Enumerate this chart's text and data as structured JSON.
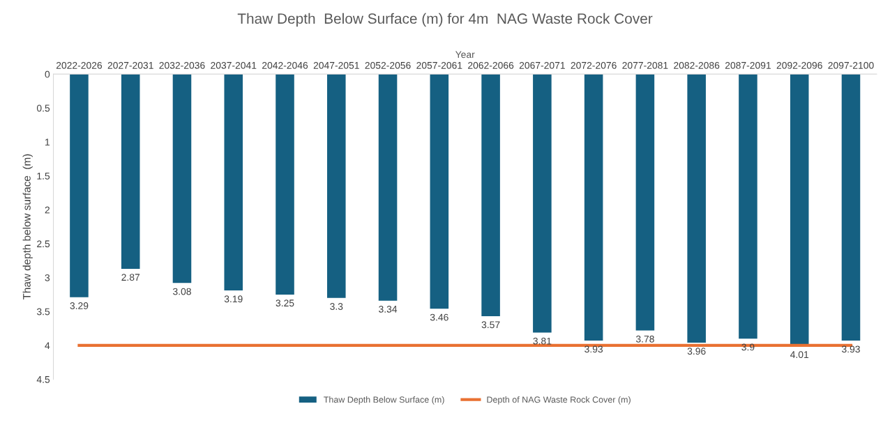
{
  "chart_data": {
    "type": "bar",
    "title": "Thaw Depth  Below Surface (m) for 4m  NAG Waste Rock Cover",
    "xlabel": "Year",
    "ylabel": "Thaw depth below surface  (m)",
    "categories": [
      "2022-2026",
      "2027-2031",
      "2032-2036",
      "2037-2041",
      "2042-2046",
      "2047-2051",
      "2052-2056",
      "2057-2061",
      "2062-2066",
      "2067-2071",
      "2072-2076",
      "2077-2081",
      "2082-2086",
      "2087-2091",
      "2092-2096",
      "2097-2100"
    ],
    "series": [
      {
        "name": "Thaw Depth Below Surface (m)",
        "color": "#156082",
        "values": [
          3.29,
          2.87,
          3.08,
          3.19,
          3.25,
          3.3,
          3.34,
          3.46,
          3.57,
          3.81,
          3.93,
          3.78,
          3.96,
          3.9,
          4.01,
          3.93
        ],
        "value_labels": [
          "3.29",
          "2.87",
          "3.08",
          "3.19",
          "3.25",
          "3.3",
          "3.34",
          "3.46",
          "3.57",
          "3.81",
          "3.93",
          "3.78",
          "3.96",
          "3.9",
          "4.01",
          "3.93"
        ]
      },
      {
        "name": "Depth of NAG Waste Rock Cover (m)",
        "type": "line",
        "color": "#e97132",
        "values": [
          4,
          4,
          4,
          4,
          4,
          4,
          4,
          4,
          4,
          4,
          4,
          4,
          4,
          4,
          4,
          4
        ]
      }
    ],
    "ylim": [
      4.5,
      0
    ],
    "yticks": [
      0,
      0.5,
      1,
      1.5,
      2,
      2.5,
      3,
      3.5,
      4,
      4.5
    ],
    "grid": false,
    "legend": "bottom"
  }
}
